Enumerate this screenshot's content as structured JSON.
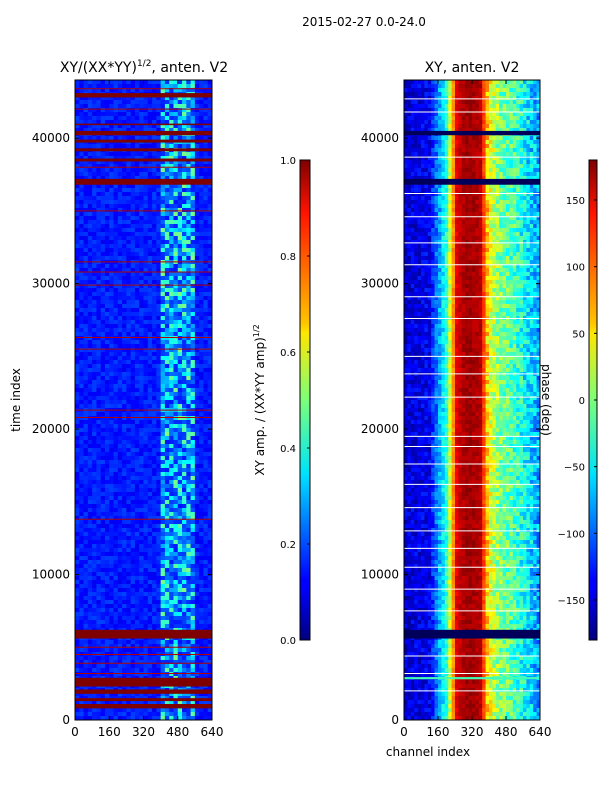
{
  "suptitle": "2015-02-27 0.0-24.0",
  "chart_data": [
    {
      "type": "heatmap",
      "title_main": "XY/(XX*YY)",
      "title_sup": "1/2",
      "title_tail": ", anten. V2",
      "xlabel": "",
      "ylabel": "time index",
      "xlim": [
        0,
        640
      ],
      "ylim": [
        0,
        44000
      ],
      "xticks": [
        "0",
        "160",
        "320",
        "480",
        "640"
      ],
      "xtick_values": [
        0,
        160,
        320,
        480,
        640
      ],
      "yticks": [
        "0",
        "10000",
        "20000",
        "30000",
        "40000"
      ],
      "ytick_values": [
        0,
        10000,
        20000,
        30000,
        40000
      ],
      "colorbar": {
        "label_main": "XY amp. / (XX*YY amp)",
        "label_sup": "1/2",
        "range": [
          0.0,
          1.0
        ],
        "ticks": [
          "0.0",
          "0.2",
          "0.4",
          "0.6",
          "0.8",
          "1.0"
        ],
        "tick_values": [
          0.0,
          0.2,
          0.4,
          0.6,
          0.8,
          1.0
        ],
        "colormap": "jet"
      },
      "saturated_bands": [
        [
          800,
          1100
        ],
        [
          1300,
          1500
        ],
        [
          1800,
          2100
        ],
        [
          2300,
          2900
        ],
        [
          5600,
          6200
        ],
        [
          36800,
          37200
        ],
        [
          38400,
          38600
        ],
        [
          39100,
          39300
        ],
        [
          39700,
          39900
        ],
        [
          40200,
          40500
        ],
        [
          40900,
          41000
        ],
        [
          42800,
          43100
        ]
      ],
      "thin_lines": [
        3200,
        3900,
        4500,
        5000,
        13800,
        20800,
        21300,
        25500,
        26300,
        29900,
        30800,
        31500,
        35000,
        38000,
        42000,
        43400
      ],
      "bright_channel_range": [
        400,
        560
      ]
    },
    {
      "type": "heatmap",
      "title": "XY, anten. V2",
      "xlabel": "channel index",
      "ylabel": "",
      "xlim": [
        0,
        640
      ],
      "ylim": [
        0,
        44000
      ],
      "xticks": [
        "0",
        "160",
        "320",
        "480",
        "640"
      ],
      "xtick_values": [
        0,
        160,
        320,
        480,
        640
      ],
      "yticks": [
        "0",
        "10000",
        "20000",
        "30000",
        "40000"
      ],
      "ytick_values": [
        0,
        10000,
        20000,
        30000,
        40000
      ],
      "colorbar": {
        "label": "phase (deg)",
        "range": [
          -180,
          180
        ],
        "ticks": [
          "−150",
          "−100",
          "−50",
          "0",
          "50",
          "100",
          "150"
        ],
        "tick_values": [
          -150,
          -100,
          -50,
          0,
          50,
          100,
          150
        ],
        "colormap": "jet"
      },
      "dark_bands": [
        [
          5600,
          6200
        ],
        [
          36800,
          37200
        ],
        [
          40200,
          40500
        ]
      ],
      "white_lines": [
        2000,
        3200,
        4400,
        7500,
        9000,
        10500,
        11800,
        13000,
        14600,
        16200,
        17600,
        18800,
        19500,
        22200,
        23800,
        25000,
        27600,
        29100,
        31300,
        32800,
        34600,
        36200,
        38700,
        41800,
        42700
      ],
      "cyan_band": [
        2800,
        2950
      ],
      "phase_profile_deg": {
        "channels": [
          0,
          120,
          200,
          250,
          300,
          360,
          400,
          450,
          520,
          600,
          640
        ],
        "phase": [
          -150,
          -140,
          -30,
          150,
          170,
          160,
          40,
          0,
          -20,
          -60,
          -80
        ]
      }
    }
  ]
}
